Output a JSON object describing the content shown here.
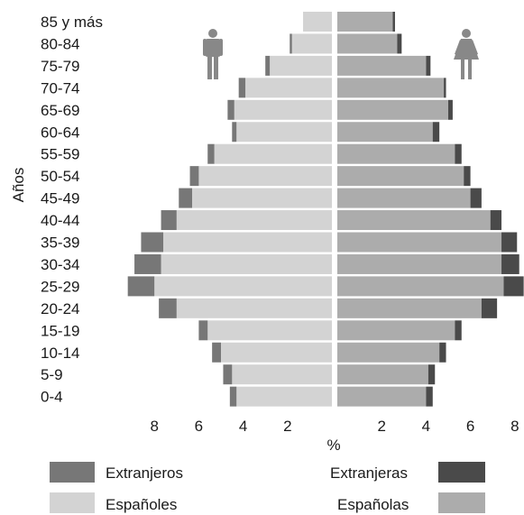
{
  "chart_data": {
    "type": "bar",
    "subtype": "population-pyramid",
    "ylabel": "Años",
    "xlabel": "%",
    "categories": [
      "85 y más",
      "80-84",
      "75-79",
      "70-74",
      "65-69",
      "60-64",
      "55-59",
      "50-54",
      "45-49",
      "40-44",
      "35-39",
      "30-34",
      "25-29",
      "20-24",
      "15-19",
      "10-14",
      "5-9",
      "0-4"
    ],
    "xlim": [
      0,
      8.5
    ],
    "xticks": [
      8,
      6,
      4,
      2
    ],
    "xtick_labels_left": [
      "8",
      "6",
      "4",
      "2"
    ],
    "xtick_labels_right": [
      "2",
      "4",
      "6",
      "8"
    ],
    "series": [
      {
        "name": "Españoles",
        "side": "left",
        "values": [
          1.3,
          1.8,
          2.8,
          3.9,
          4.4,
          4.3,
          5.3,
          6.0,
          6.3,
          7.0,
          7.6,
          7.7,
          8.0,
          7.0,
          5.6,
          5.0,
          4.5,
          4.3
        ]
      },
      {
        "name": "Extranjeros",
        "side": "left",
        "values": [
          0.0,
          0.1,
          0.2,
          0.3,
          0.3,
          0.2,
          0.3,
          0.4,
          0.6,
          0.7,
          1.0,
          1.2,
          1.2,
          0.8,
          0.4,
          0.4,
          0.4,
          0.3
        ]
      },
      {
        "name": "Españolas",
        "side": "right",
        "values": [
          2.5,
          2.7,
          4.0,
          4.8,
          5.0,
          4.3,
          5.3,
          5.7,
          6.0,
          6.9,
          7.4,
          7.4,
          7.5,
          6.5,
          5.3,
          4.6,
          4.1,
          4.0
        ]
      },
      {
        "name": "Extranjeras",
        "side": "right",
        "values": [
          0.1,
          0.2,
          0.2,
          0.1,
          0.2,
          0.3,
          0.3,
          0.3,
          0.5,
          0.5,
          0.7,
          0.8,
          0.9,
          0.7,
          0.3,
          0.3,
          0.3,
          0.3
        ]
      }
    ],
    "legend": {
      "placement": "bottom",
      "male_foreign": "Extranjeros",
      "male_spanish": "Españoles",
      "female_foreign": "Extranjeras",
      "female_spanish": "Españolas"
    },
    "colors": {
      "Españoles": "#d3d3d3",
      "Extranjeros": "#777777",
      "Españolas": "#acacac",
      "Extranjeras": "#4a4a4a",
      "icon": "#888888"
    },
    "icons": {
      "left": "male-icon",
      "right": "female-icon"
    },
    "grid": false
  }
}
